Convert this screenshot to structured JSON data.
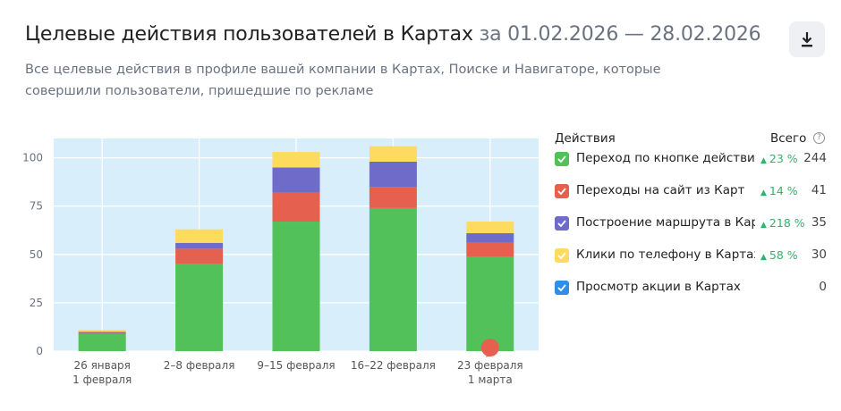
{
  "header": {
    "title": "Целевые действия пользователей в Картах",
    "period": "за 01.02.2026 — 28.02.2026",
    "subtitle": "Все целевые действия в профиле вашей компании в Картах, Поиске и Навигаторе, которые совершили пользователи, пришедшие по рекламе"
  },
  "legend": {
    "col_actions": "Действия",
    "col_total": "Всего",
    "help": "?",
    "items": [
      {
        "label": "Переход по кнопке действия в Картах",
        "delta": "23 %",
        "total": "244",
        "color": "#52c15a"
      },
      {
        "label": "Переходы на сайт из Карт",
        "delta": "14 %",
        "total": "41",
        "color": "#e5604f"
      },
      {
        "label": "Построение маршрута в Картах",
        "delta": "218 %",
        "total": "35",
        "color": "#6f6bc8"
      },
      {
        "label": "Клики по телефону в Картах",
        "delta": "58 %",
        "total": "30",
        "color": "#fcdb5e"
      },
      {
        "label": "Просмотр акции в Картах",
        "delta": "",
        "total": "0",
        "color": "#2e8ee8"
      }
    ]
  },
  "chart_data": {
    "type": "bar",
    "stacked": true,
    "categories": [
      [
        "26 января",
        "1 февраля"
      ],
      [
        "2–8 февраля"
      ],
      [
        "9–15 февраля"
      ],
      [
        "16–22 февраля"
      ],
      [
        "23 февраля",
        "1 марта"
      ]
    ],
    "ylim": [
      0,
      110
    ],
    "yticks": [
      0,
      25,
      50,
      75,
      100
    ],
    "series": [
      {
        "name": "Переход по кнопке действия в Картах",
        "color": "#52c15a",
        "values": [
          9,
          45,
          67,
          74,
          49
        ]
      },
      {
        "name": "Переходы на сайт из Карт",
        "color": "#e5604f",
        "values": [
          0.5,
          8,
          15,
          11,
          7
        ]
      },
      {
        "name": "Построение маршрута в Картах",
        "color": "#6f6bc8",
        "values": [
          0.5,
          3,
          13,
          13,
          5
        ]
      },
      {
        "name": "Клики по телефону в Картах",
        "color": "#fcdb5e",
        "values": [
          1,
          7,
          8,
          8,
          6
        ]
      }
    ],
    "marker": {
      "category_index": 4,
      "color": "#e5604f"
    }
  }
}
